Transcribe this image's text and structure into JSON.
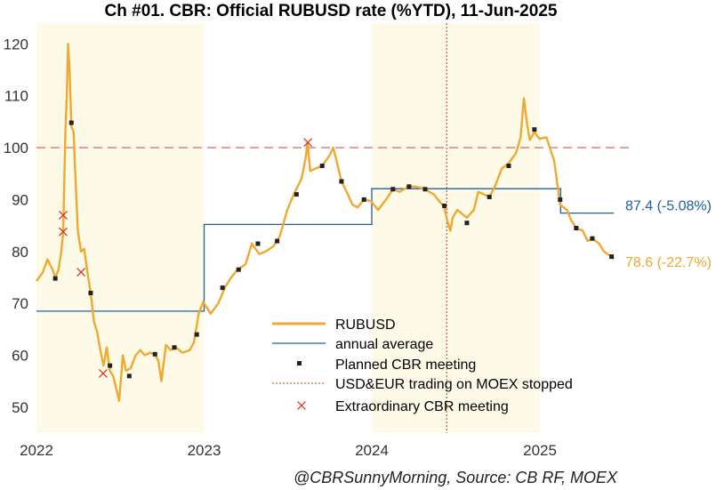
{
  "chart_data": {
    "type": "line",
    "title": "Ch #01. CBR: Official RUBUSD rate (%YTD), 11-Jun-2025",
    "caption": "@CBRSunnyMorning, Source: CB RF, MOEX",
    "xlim": [
      "2022-01-01",
      "2025-06-30"
    ],
    "ylim": [
      45,
      124
    ],
    "x_ticks": [
      {
        "date": "2022-01-01",
        "label": "2022"
      },
      {
        "date": "2023-01-01",
        "label": "2023"
      },
      {
        "date": "2024-01-01",
        "label": "2024"
      },
      {
        "date": "2025-01-01",
        "label": "2025"
      }
    ],
    "y_ticks": [
      50,
      60,
      70,
      80,
      90,
      100,
      110,
      120
    ],
    "shaded_years": [
      [
        "2022-01-01",
        "2023-01-01"
      ],
      [
        "2024-01-01",
        "2025-01-01"
      ]
    ],
    "reference_line": {
      "y": 100,
      "color": "#cc4444"
    },
    "stop_trading_date": "2024-06-12",
    "colors": {
      "rubusd": "#f0a830",
      "average": "#1f5fa6",
      "meeting": "#222222",
      "extraordinary": "#d62c1a",
      "shade": "#fdfbe8"
    },
    "series": [
      {
        "name": "RUBUSD",
        "points": [
          [
            "2022-01-01",
            74.3
          ],
          [
            "2022-01-15",
            76.0
          ],
          [
            "2022-01-25",
            78.5
          ],
          [
            "2022-02-05",
            76.5
          ],
          [
            "2022-02-11",
            75.0
          ],
          [
            "2022-02-18",
            76.5
          ],
          [
            "2022-02-24",
            80.0
          ],
          [
            "2022-02-28",
            83.5
          ],
          [
            "2022-03-03",
            95.0
          ],
          [
            "2022-03-05",
            103.0
          ],
          [
            "2022-03-08",
            110.0
          ],
          [
            "2022-03-11",
            120.0
          ],
          [
            "2022-03-14",
            115.0
          ],
          [
            "2022-03-18",
            104.0
          ],
          [
            "2022-03-23",
            103.0
          ],
          [
            "2022-03-25",
            98.0
          ],
          [
            "2022-04-01",
            84.0
          ],
          [
            "2022-04-08",
            80.0
          ],
          [
            "2022-04-15",
            80.5
          ],
          [
            "2022-04-22",
            76.0
          ],
          [
            "2022-04-29",
            72.0
          ],
          [
            "2022-05-06",
            66.5
          ],
          [
            "2022-05-13",
            64.5
          ],
          [
            "2022-05-20",
            61.0
          ],
          [
            "2022-05-27",
            58.0
          ],
          [
            "2022-06-03",
            61.5
          ],
          [
            "2022-06-10",
            57.0
          ],
          [
            "2022-06-17",
            56.0
          ],
          [
            "2022-06-24",
            53.5
          ],
          [
            "2022-06-30",
            51.2
          ],
          [
            "2022-07-08",
            60.0
          ],
          [
            "2022-07-15",
            57.0
          ],
          [
            "2022-07-25",
            57.5
          ],
          [
            "2022-08-05",
            60.0
          ],
          [
            "2022-08-15",
            61.0
          ],
          [
            "2022-08-25",
            60.0
          ],
          [
            "2022-09-05",
            60.5
          ],
          [
            "2022-09-15",
            60.2
          ],
          [
            "2022-09-23",
            59.0
          ],
          [
            "2022-09-30",
            55.0
          ],
          [
            "2022-10-10",
            62.0
          ],
          [
            "2022-10-20",
            61.0
          ],
          [
            "2022-11-01",
            61.5
          ],
          [
            "2022-11-15",
            60.5
          ],
          [
            "2022-12-01",
            61.0
          ],
          [
            "2022-12-10",
            62.5
          ],
          [
            "2022-12-20",
            68.0
          ],
          [
            "2022-12-30",
            70.3
          ],
          [
            "2023-01-15",
            68.0
          ],
          [
            "2023-02-01",
            70.0
          ],
          [
            "2023-02-15",
            73.0
          ],
          [
            "2023-03-01",
            75.0
          ],
          [
            "2023-03-15",
            76.5
          ],
          [
            "2023-04-01",
            77.5
          ],
          [
            "2023-04-15",
            81.5
          ],
          [
            "2023-05-01",
            79.5
          ],
          [
            "2023-05-15",
            80.0
          ],
          [
            "2023-06-01",
            81.0
          ],
          [
            "2023-06-15",
            83.0
          ],
          [
            "2023-07-01",
            88.0
          ],
          [
            "2023-07-15",
            91.0
          ],
          [
            "2023-08-01",
            94.0
          ],
          [
            "2023-08-10",
            98.0
          ],
          [
            "2023-08-14",
            101.0
          ],
          [
            "2023-08-20",
            95.5
          ],
          [
            "2023-09-01",
            96.0
          ],
          [
            "2023-09-15",
            96.5
          ],
          [
            "2023-10-01",
            98.5
          ],
          [
            "2023-10-09",
            100.0
          ],
          [
            "2023-10-15",
            98.0
          ],
          [
            "2023-10-27",
            93.5
          ],
          [
            "2023-11-10",
            91.0
          ],
          [
            "2023-11-20",
            89.0
          ],
          [
            "2023-12-01",
            88.5
          ],
          [
            "2023-12-15",
            90.0
          ],
          [
            "2023-12-30",
            89.7
          ],
          [
            "2024-01-15",
            88.0
          ],
          [
            "2024-02-01",
            90.0
          ],
          [
            "2024-02-16",
            92.0
          ],
          [
            "2024-03-01",
            91.5
          ],
          [
            "2024-03-22",
            92.5
          ],
          [
            "2024-04-05",
            92.5
          ],
          [
            "2024-04-26",
            92.0
          ],
          [
            "2024-05-15",
            91.0
          ],
          [
            "2024-06-07",
            88.5
          ],
          [
            "2024-06-13",
            86.0
          ],
          [
            "2024-06-20",
            84.0
          ],
          [
            "2024-06-25",
            86.5
          ],
          [
            "2024-07-05",
            88.0
          ],
          [
            "2024-07-26",
            86.5
          ],
          [
            "2024-08-10",
            88.0
          ],
          [
            "2024-08-20",
            91.5
          ],
          [
            "2024-09-13",
            90.5
          ],
          [
            "2024-09-25",
            92.5
          ],
          [
            "2024-10-10",
            96.0
          ],
          [
            "2024-10-25",
            97.0
          ],
          [
            "2024-11-10",
            99.0
          ],
          [
            "2024-11-20",
            102.0
          ],
          [
            "2024-11-27",
            109.5
          ],
          [
            "2024-12-05",
            104.0
          ],
          [
            "2024-12-10",
            101.5
          ],
          [
            "2024-12-20",
            103.0
          ],
          [
            "2024-12-31",
            101.7
          ],
          [
            "2025-01-15",
            102.0
          ],
          [
            "2025-02-01",
            97.5
          ],
          [
            "2025-02-14",
            89.0
          ],
          [
            "2025-03-01",
            88.0
          ],
          [
            "2025-03-10",
            86.0
          ],
          [
            "2025-03-21",
            84.5
          ],
          [
            "2025-04-04",
            84.0
          ],
          [
            "2025-04-15",
            82.0
          ],
          [
            "2025-04-25",
            82.5
          ],
          [
            "2025-05-10",
            81.5
          ],
          [
            "2025-05-20",
            80.0
          ],
          [
            "2025-06-06",
            79.0
          ],
          [
            "2025-06-11",
            78.6
          ]
        ]
      },
      {
        "name": "annual average",
        "steps": [
          {
            "from": "2022-01-01",
            "to": "2023-01-01",
            "value": 68.5
          },
          {
            "from": "2023-01-01",
            "to": "2024-01-01",
            "value": 85.2
          },
          {
            "from": "2024-01-01",
            "to": "2025-01-01",
            "value": 92.1
          },
          {
            "from": "2025-01-01",
            "to": "2025-02-15",
            "value": 92.1
          },
          {
            "from": "2025-02-15",
            "to": "2025-06-11",
            "value": 87.4
          }
        ]
      },
      {
        "name": "Planned CBR meeting",
        "points": [
          [
            "2022-02-11",
            74.8
          ],
          [
            "2022-03-18",
            104.8
          ],
          [
            "2022-04-29",
            72.0
          ],
          [
            "2022-06-10",
            58.0
          ],
          [
            "2022-07-22",
            56.0
          ],
          [
            "2022-09-16",
            60.2
          ],
          [
            "2022-10-28",
            61.5
          ],
          [
            "2022-12-16",
            64.0
          ],
          [
            "2023-02-10",
            73.0
          ],
          [
            "2023-03-17",
            76.5
          ],
          [
            "2023-04-28",
            81.5
          ],
          [
            "2023-06-09",
            82.0
          ],
          [
            "2023-07-21",
            91.0
          ],
          [
            "2023-09-15",
            96.5
          ],
          [
            "2023-10-27",
            93.5
          ],
          [
            "2023-12-15",
            90.0
          ],
          [
            "2024-02-16",
            92.0
          ],
          [
            "2024-03-22",
            92.5
          ],
          [
            "2024-04-26",
            92.0
          ],
          [
            "2024-06-07",
            88.8
          ],
          [
            "2024-07-26",
            85.5
          ],
          [
            "2024-09-13",
            90.5
          ],
          [
            "2024-10-25",
            96.5
          ],
          [
            "2024-12-20",
            103.5
          ],
          [
            "2025-02-14",
            90.0
          ],
          [
            "2025-03-21",
            84.5
          ],
          [
            "2025-04-25",
            82.5
          ],
          [
            "2025-06-06",
            79.0
          ]
        ]
      },
      {
        "name": "USD&EUR trading on MOEX stopped"
      },
      {
        "name": "Extraordinary CBR meeting",
        "points": [
          [
            "2022-02-28",
            87.0
          ],
          [
            "2022-02-28",
            83.8
          ],
          [
            "2022-04-08",
            76.0
          ],
          [
            "2022-05-26",
            56.5
          ],
          [
            "2023-08-15",
            101.0
          ]
        ]
      }
    ],
    "end_labels": {
      "average": "87.4 (-5.08%)",
      "rubusd": "78.6 (-22.7%)"
    }
  }
}
